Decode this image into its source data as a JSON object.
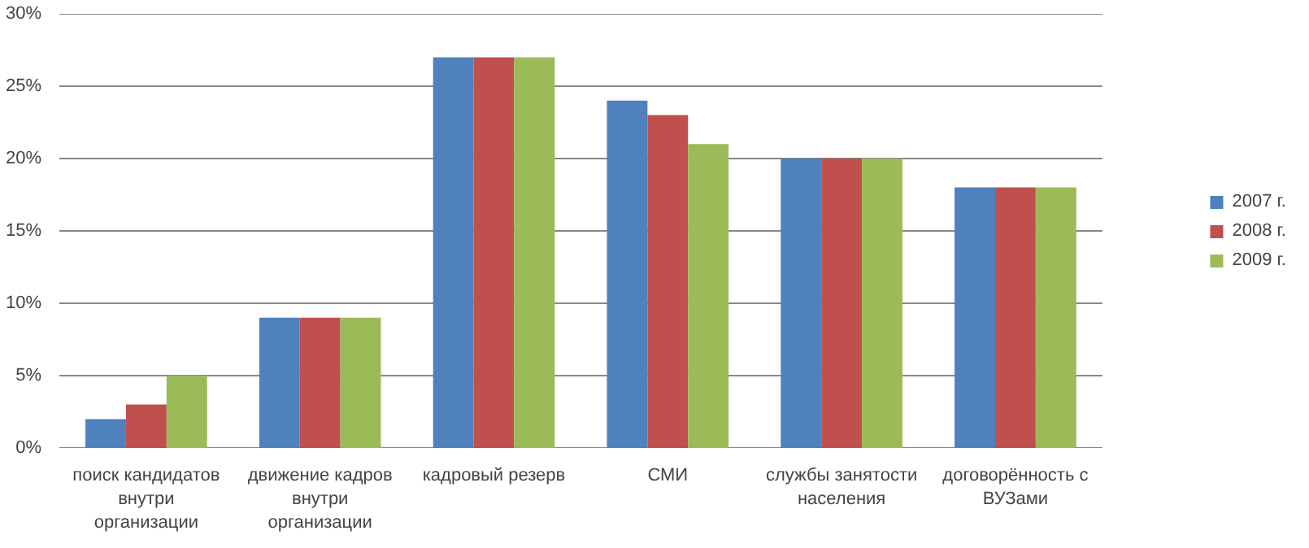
{
  "chart_data": {
    "type": "bar",
    "categories": [
      "поиск кандидатов внутри организации",
      "движение кадров внутри организации",
      "кадровый резерв",
      "СМИ",
      "службы занятости населения",
      "договорённость с ВУЗами"
    ],
    "series": [
      {
        "name": "2007 г.",
        "color": "#4f81bd",
        "values": [
          2,
          9,
          27,
          24,
          20,
          18
        ]
      },
      {
        "name": "2008 г.",
        "color": "#c0504d",
        "values": [
          3,
          9,
          27,
          23,
          20,
          18
        ]
      },
      {
        "name": "2009 г.",
        "color": "#9bbb59",
        "values": [
          5,
          9,
          27,
          21,
          20,
          18
        ]
      }
    ],
    "ylim": [
      0,
      30
    ],
    "yticks": [
      {
        "value": 0,
        "label": "0%"
      },
      {
        "value": 5,
        "label": "5%"
      },
      {
        "value": 10,
        "label": "10%"
      },
      {
        "value": 15,
        "label": "15%"
      },
      {
        "value": 20,
        "label": "20%"
      },
      {
        "value": 25,
        "label": "25%"
      },
      {
        "value": 30,
        "label": "30%"
      }
    ],
    "grid": "y",
    "legend": "right"
  }
}
